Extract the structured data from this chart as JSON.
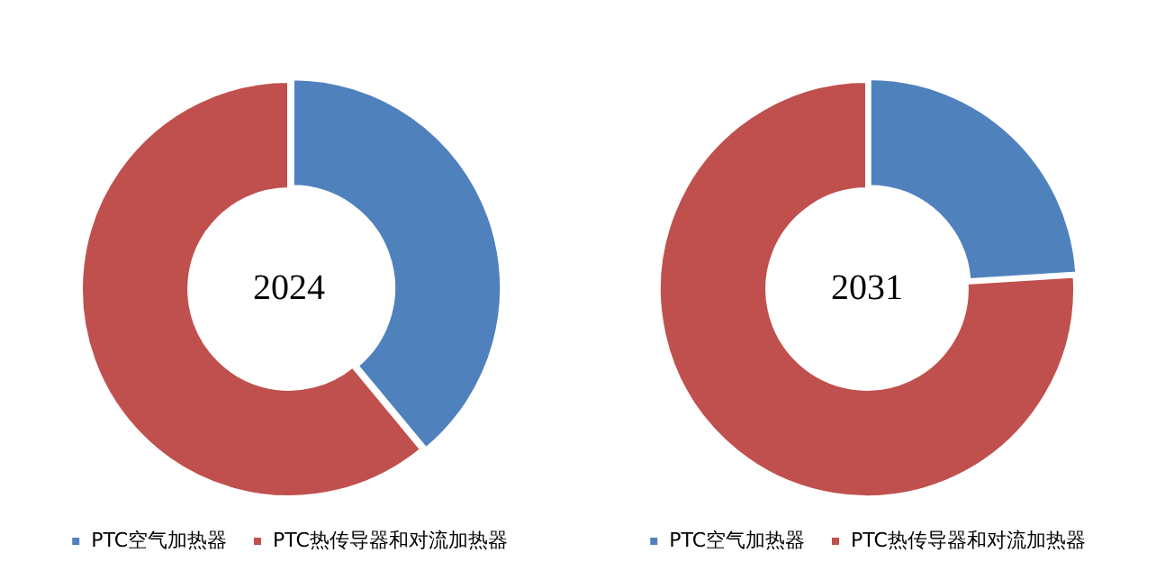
{
  "chart_data": [
    {
      "type": "donut",
      "title": "2024",
      "categories": [
        "PTC空气加热器",
        "PTC热传导器和对流加热器"
      ],
      "values": [
        39,
        61
      ],
      "colors": [
        "#4f81bd",
        "#c0504d"
      ],
      "legend": "bottom"
    },
    {
      "type": "donut",
      "title": "2031",
      "categories": [
        "PTC空气加热器",
        "PTC热传导器和对流加热器"
      ],
      "values": [
        24,
        76
      ],
      "colors": [
        "#4f81bd",
        "#c0504d"
      ],
      "legend": "bottom"
    }
  ]
}
